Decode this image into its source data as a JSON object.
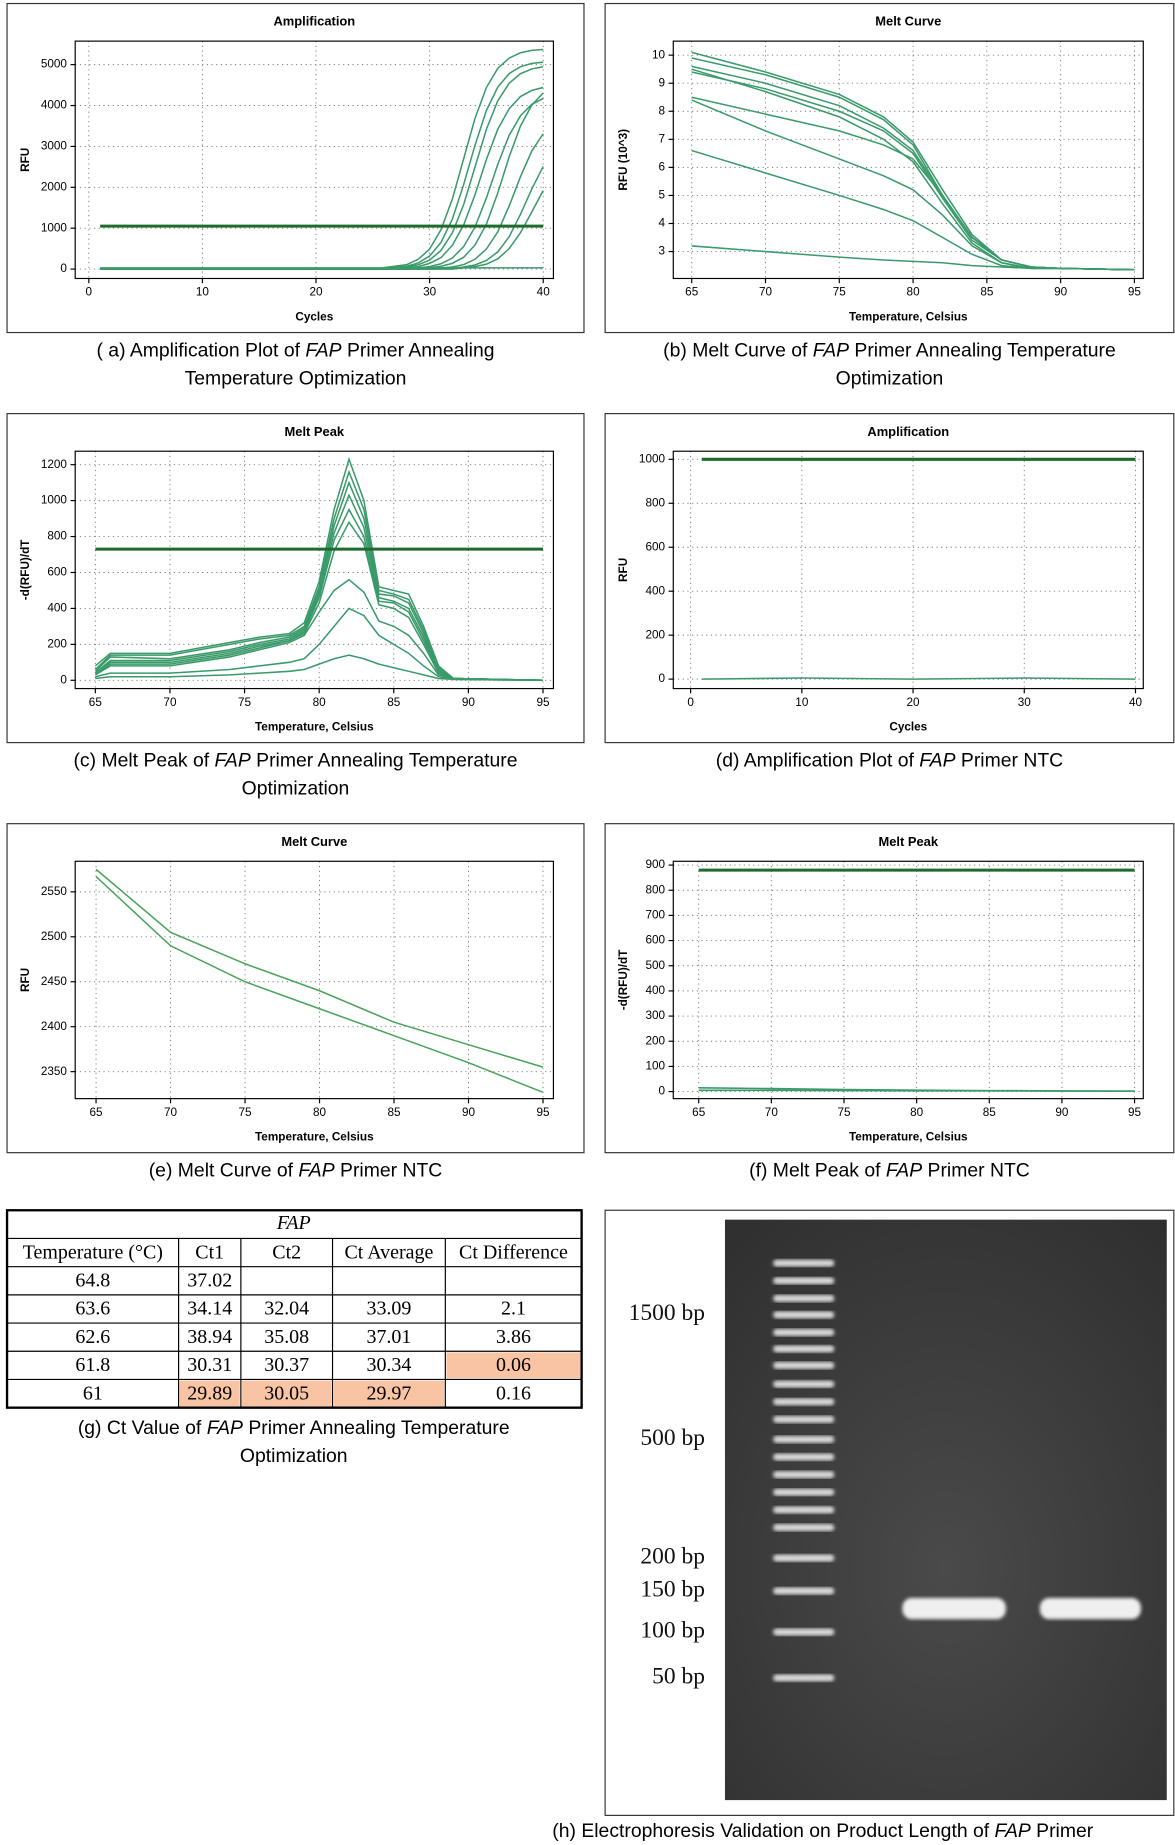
{
  "chart_data": [
    {
      "type": "line",
      "title": "Amplification",
      "xlabel": "Cycles",
      "ylabel": "RFU",
      "x": [
        1,
        10,
        20,
        25,
        28,
        29,
        30,
        31,
        32,
        33,
        34,
        35,
        36,
        37,
        38,
        39,
        40
      ],
      "series": [
        {
          "color": "#3a9a6a",
          "values": [
            0,
            0,
            0,
            0,
            110,
            240,
            490,
            960,
            1710,
            2700,
            3690,
            4440,
            4910,
            5160,
            5290,
            5350,
            5370
          ]
        },
        {
          "color": "#3a9a6a",
          "values": [
            0,
            0,
            0,
            0,
            70,
            150,
            320,
            650,
            1220,
            2070,
            3030,
            3880,
            4450,
            4780,
            4950,
            5030,
            5060
          ]
        },
        {
          "color": "#3a9a6a",
          "values": [
            0,
            0,
            0,
            0,
            50,
            105,
            220,
            455,
            885,
            1580,
            2500,
            3420,
            4115,
            4545,
            4780,
            4895,
            4950
          ]
        },
        {
          "color": "#3a9a6a",
          "values": [
            0,
            0,
            0,
            0,
            30,
            60,
            140,
            280,
            580,
            1080,
            1820,
            2680,
            3420,
            3920,
            4220,
            4370,
            4440
          ]
        },
        {
          "color": "#3a9a6a",
          "values": [
            0,
            0,
            0,
            0,
            10,
            30,
            60,
            130,
            270,
            550,
            1030,
            1740,
            2560,
            3270,
            3750,
            4030,
            4170
          ]
        },
        {
          "color": "#3a9a6a",
          "values": [
            0,
            0,
            0,
            0,
            10,
            10,
            30,
            70,
            140,
            290,
            590,
            1100,
            1860,
            2740,
            3500,
            4010,
            4310
          ]
        },
        {
          "color": "#3a9a6a",
          "values": [
            0,
            0,
            0,
            0,
            0,
            10,
            10,
            30,
            50,
            110,
            240,
            490,
            910,
            1540,
            2260,
            2890,
            3310
          ]
        },
        {
          "color": "#3a9a6a",
          "values": [
            0,
            0,
            0,
            0,
            0,
            0,
            0,
            10,
            20,
            50,
            100,
            210,
            420,
            790,
            1340,
            1960,
            2510
          ]
        },
        {
          "color": "#3a9a6a",
          "values": [
            0,
            0,
            0,
            0,
            0,
            0,
            0,
            0,
            0,
            30,
            60,
            120,
            250,
            500,
            890,
            1400,
            1920
          ]
        },
        {
          "color": "#3a9a6a",
          "values": [
            30,
            30,
            30,
            30,
            30,
            30,
            30,
            30,
            30,
            30,
            30,
            30,
            30,
            30,
            30,
            30,
            30
          ]
        }
      ],
      "threshold": 1050,
      "threshold_color": "#1e6b2b",
      "xlim": [
        -1.2,
        40.9
      ],
      "xticks": [
        0,
        10,
        20,
        30,
        40
      ],
      "ylim": [
        -230,
        5575
      ],
      "yticks": [
        0,
        1000,
        2000,
        3000,
        4000,
        5000
      ],
      "grid": true,
      "caption": [
        [
          "( a) Amplification Plot of ",
          "FAP",
          " Primer Annealing"
        ],
        [
          "Temperature Optimization"
        ]
      ]
    },
    {
      "type": "line",
      "title": "Melt Curve",
      "xlabel": "Temperature, Celsius",
      "ylabel": "RFU (10^3)",
      "x": [
        65,
        70,
        75,
        78,
        80,
        82,
        84,
        86,
        88,
        90,
        95
      ],
      "series": [
        {
          "color": "#3a9a6a",
          "values": [
            10.1,
            9.4,
            8.6,
            7.8,
            6.9,
            5.2,
            3.6,
            2.7,
            2.45,
            2.4,
            2.35
          ]
        },
        {
          "color": "#3a9a6a",
          "values": [
            9.9,
            9.3,
            8.5,
            7.7,
            6.8,
            5.0,
            3.5,
            2.7,
            2.45,
            2.4,
            2.35
          ]
        },
        {
          "color": "#3a9a6a",
          "values": [
            9.6,
            9.0,
            8.2,
            7.4,
            6.6,
            5.0,
            3.5,
            2.7,
            2.45,
            2.4,
            2.35
          ]
        },
        {
          "color": "#3a9a6a",
          "values": [
            9.4,
            8.8,
            8.0,
            7.3,
            6.5,
            4.9,
            3.4,
            2.7,
            2.45,
            2.4,
            2.35
          ]
        },
        {
          "color": "#3a9a6a",
          "values": [
            9.5,
            8.7,
            7.8,
            7.0,
            6.2,
            4.7,
            3.3,
            2.6,
            2.4,
            2.4,
            2.35
          ]
        },
        {
          "color": "#3a9a6a",
          "values": [
            8.5,
            7.9,
            7.3,
            6.8,
            6.3,
            5.0,
            3.5,
            2.7,
            2.45,
            2.4,
            2.35
          ]
        },
        {
          "color": "#3a9a6a",
          "values": [
            8.4,
            7.3,
            6.3,
            5.7,
            5.2,
            4.3,
            3.2,
            2.6,
            2.4,
            2.4,
            2.35
          ]
        },
        {
          "color": "#3a9a6a",
          "values": [
            6.6,
            5.8,
            5.0,
            4.5,
            4.1,
            3.5,
            2.9,
            2.5,
            2.4,
            2.4,
            2.35
          ]
        },
        {
          "color": "#3a9a6a",
          "values": [
            3.2,
            3.0,
            2.8,
            2.7,
            2.65,
            2.6,
            2.5,
            2.45,
            2.4,
            2.4,
            2.35
          ]
        }
      ],
      "xlim": [
        63.75,
        95.6
      ],
      "xticks": [
        65,
        70,
        75,
        80,
        85,
        90,
        95
      ],
      "ylim": [
        2.04,
        10.5
      ],
      "yticks": [
        3,
        4,
        5,
        6,
        7,
        8,
        9,
        10
      ],
      "grid": true,
      "caption": [
        [
          "(b) Melt Curve of ",
          "FAP",
          " Primer Annealing Temperature"
        ],
        [
          "Optimization"
        ]
      ]
    },
    {
      "type": "line",
      "title": "Melt Peak",
      "xlabel": "Temperature, Celsius",
      "ylabel": "-d(RFU)/dT",
      "x": [
        65,
        66,
        70,
        74,
        76,
        78,
        79,
        80,
        81,
        82,
        83,
        84,
        85,
        86,
        87,
        88,
        89,
        95
      ],
      "series": [
        {
          "color": "#3a9a6a",
          "values": [
            80,
            150,
            150,
            210,
            240,
            260,
            320,
            550,
            950,
            1230,
            1000,
            520,
            500,
            480,
            300,
            80,
            10,
            0
          ]
        },
        {
          "color": "#3a9a6a",
          "values": [
            60,
            140,
            140,
            200,
            230,
            250,
            300,
            520,
            900,
            1160,
            950,
            500,
            480,
            450,
            280,
            70,
            10,
            0
          ]
        },
        {
          "color": "#3a9a6a",
          "values": [
            50,
            130,
            120,
            170,
            210,
            240,
            290,
            500,
            860,
            1100,
            900,
            480,
            470,
            430,
            260,
            60,
            10,
            0
          ]
        },
        {
          "color": "#3a9a6a",
          "values": [
            40,
            110,
            110,
            160,
            200,
            230,
            280,
            480,
            820,
            1030,
            850,
            460,
            440,
            400,
            240,
            50,
            10,
            0
          ]
        },
        {
          "color": "#3a9a6a",
          "values": [
            40,
            100,
            100,
            150,
            190,
            220,
            270,
            460,
            780,
            950,
            800,
            440,
            430,
            380,
            220,
            50,
            10,
            0
          ]
        },
        {
          "color": "#3a9a6a",
          "values": [
            30,
            90,
            90,
            140,
            180,
            220,
            260,
            430,
            720,
            880,
            760,
            420,
            400,
            350,
            200,
            40,
            10,
            0
          ]
        },
        {
          "color": "#3a9a6a",
          "values": [
            30,
            80,
            80,
            130,
            170,
            210,
            250,
            380,
            500,
            560,
            490,
            330,
            300,
            250,
            150,
            30,
            10,
            0
          ]
        },
        {
          "color": "#3a9a6a",
          "values": [
            20,
            40,
            40,
            60,
            80,
            100,
            120,
            200,
            300,
            400,
            360,
            250,
            200,
            150,
            80,
            20,
            5,
            0
          ]
        },
        {
          "color": "#3a9a6a",
          "values": [
            10,
            20,
            20,
            30,
            40,
            50,
            60,
            90,
            120,
            140,
            120,
            90,
            70,
            50,
            30,
            10,
            5,
            0
          ]
        }
      ],
      "threshold": 730,
      "threshold_color": "#1e6b2b",
      "xlim": [
        63.65,
        95.7
      ],
      "xticks": [
        65,
        70,
        75,
        80,
        85,
        90,
        95
      ],
      "ylim": [
        -46,
        1275
      ],
      "yticks": [
        0,
        200,
        400,
        600,
        800,
        1000,
        1200
      ],
      "grid": true,
      "caption": [
        [
          "(c) Melt Peak of ",
          "FAP",
          " Primer Annealing Temperature"
        ],
        [
          "Optimization"
        ]
      ]
    },
    {
      "type": "line",
      "title": "Amplification",
      "xlabel": "Cycles",
      "ylabel": "RFU",
      "x": [
        1,
        10,
        20,
        30,
        40
      ],
      "series": [
        {
          "color": "#3a9a6a",
          "values": [
            0,
            5,
            0,
            5,
            0
          ]
        }
      ],
      "threshold": 1000,
      "threshold_color": "#1e6b2b",
      "xlim": [
        -1.56,
        40.7
      ],
      "xticks": [
        0,
        10,
        20,
        30,
        40
      ],
      "ylim": [
        -43,
        1037
      ],
      "yticks": [
        0,
        200,
        400,
        600,
        800,
        1000
      ],
      "grid": true,
      "caption": [
        [
          "(d) Amplification Plot of ",
          "FAP",
          " Primer NTC"
        ]
      ]
    },
    {
      "type": "line",
      "title": "Melt Curve",
      "xlabel": "Temperature, Celsius",
      "ylabel": "RFU",
      "x": [
        65,
        70,
        75,
        80,
        85,
        90,
        95
      ],
      "series": [
        {
          "color": "#4aa35a",
          "values": [
            2575,
            2505,
            2470,
            2440,
            2405,
            2380,
            2355
          ]
        },
        {
          "color": "#4aa35a",
          "values": [
            2567,
            2490,
            2450,
            2420,
            2390,
            2360,
            2327
          ]
        }
      ],
      "xlim": [
        63.6,
        95.7
      ],
      "xticks": [
        65,
        70,
        75,
        80,
        85,
        90,
        95
      ],
      "ylim": [
        2320,
        2584
      ],
      "yticks": [
        2350,
        2400,
        2450,
        2500,
        2550
      ],
      "grid": true,
      "caption": [
        [
          "(e) Melt Curve of ",
          "FAP",
          " Primer NTC"
        ]
      ]
    },
    {
      "type": "line",
      "title": "Melt Peak",
      "xlabel": "Temperature, Celsius",
      "ylabel": "-d(RFU)/dT",
      "x": [
        65,
        70,
        75,
        80,
        85,
        90,
        95
      ],
      "series": [
        {
          "color": "#3a9a6a",
          "values": [
            15,
            12,
            8,
            6,
            4,
            3,
            2
          ]
        },
        {
          "color": "#3a9a6a",
          "values": [
            5,
            5,
            4,
            3,
            3,
            2,
            2
          ]
        }
      ],
      "threshold": 880,
      "threshold_color": "#1e6b2b",
      "xlim": [
        63.25,
        95.6
      ],
      "xticks": [
        65,
        70,
        75,
        80,
        85,
        90,
        95
      ],
      "ylim": [
        -28,
        915
      ],
      "yticks": [
        0,
        100,
        200,
        300,
        400,
        500,
        600,
        700,
        800,
        900
      ],
      "grid": true,
      "caption": [
        [
          "(f) Melt Peak of ",
          "FAP",
          " Primer NTC"
        ]
      ]
    }
  ],
  "table": {
    "title": "FAP",
    "header": [
      "Temperature (°C)",
      "Ct1",
      "Ct2",
      "Ct Average",
      "Ct Difference"
    ],
    "rows": [
      [
        "64.8",
        "37.02"
      ],
      [
        "63.6",
        "34.14",
        "32.04",
        "33.09",
        "2.1"
      ],
      [
        "62.6",
        "38.94",
        "35.08",
        "37.01",
        "3.86"
      ],
      [
        "61.8",
        "30.31",
        "30.37",
        "30.34",
        "0.06"
      ],
      [
        "61",
        "29.89",
        "30.05",
        "29.97",
        "0.16"
      ]
    ],
    "caption": [
      [
        "(g) Ct Value of ",
        "FAP",
        " Primer Annealing Temperature"
      ],
      [
        "Optimization"
      ]
    ]
  },
  "gel": {
    "labels": [
      "1500 bp",
      "500 bp",
      "200 bp",
      "150 bp",
      "100 bp",
      "50 bp"
    ],
    "caption": [
      [
        "(h) Electrophoresis Validation on Product Length of ",
        "FAP",
        " Primer"
      ]
    ]
  }
}
